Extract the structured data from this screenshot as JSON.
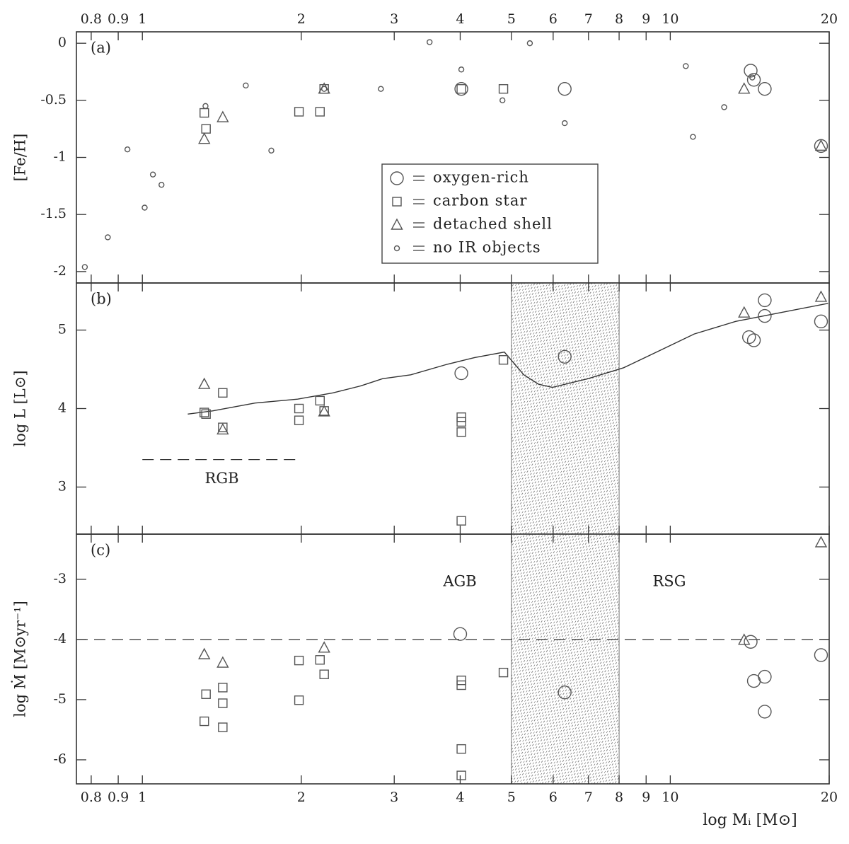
{
  "chart_data": [
    {
      "type": "scatter",
      "panel_label": "(a)",
      "ylabel": "[Fe/H]",
      "xscale": "log",
      "xlim": [
        0.75,
        20
      ],
      "xticks": [
        0.8,
        0.9,
        1,
        2,
        3,
        4,
        5,
        6,
        7,
        8,
        9,
        10,
        20
      ],
      "ylim": [
        -2.1,
        0.1
      ],
      "yticks": [
        0,
        -0.5,
        -1,
        -1.5,
        -2
      ],
      "legend": "center",
      "series": [
        {
          "name": "oxygen-rich",
          "marker": "circle",
          "color": "#555555",
          "x": [
            4.02,
            6.31,
            14.2,
            14.4,
            15.1,
            19.3
          ],
          "values": [
            -0.4,
            -0.4,
            -0.24,
            -0.32,
            -0.4,
            -0.9
          ]
        },
        {
          "name": "carbon star",
          "marker": "square",
          "color": "#555555",
          "x": [
            1.31,
            1.32,
            1.98,
            2.17,
            2.21,
            4.02,
            4.83
          ],
          "values": [
            -0.61,
            -0.75,
            -0.6,
            -0.6,
            -0.4,
            -0.4,
            -0.4
          ]
        },
        {
          "name": "detached shell",
          "marker": "triangle",
          "color": "#555555",
          "x": [
            1.31,
            1.42,
            2.21,
            13.8,
            19.3
          ],
          "values": [
            -0.84,
            -0.65,
            -0.4,
            -0.4,
            -0.9
          ]
        },
        {
          "name": "no IR objects",
          "marker": "dot",
          "color": "#000000",
          "x": [
            0.778,
            0.86,
            0.937,
            1.01,
            1.047,
            1.087,
            1.317,
            1.57,
            1.755,
            2.21,
            2.83,
            3.5,
            4.02,
            4.81,
            5.42,
            6.31,
            10.7,
            11.04,
            12.65,
            14.3
          ],
          "values": [
            -1.96,
            -1.7,
            -0.93,
            -1.44,
            -1.15,
            -1.24,
            -0.55,
            -0.37,
            -0.94,
            -0.4,
            -0.4,
            0.01,
            -0.23,
            -0.5,
            0.0,
            -0.7,
            -0.2,
            -0.82,
            -0.56,
            -0.3
          ]
        }
      ]
    },
    {
      "type": "scatter",
      "panel_label": "(b)",
      "ylabel": "log L [L⊙]",
      "xscale": "log",
      "xlim": [
        0.75,
        20
      ],
      "xticks": [
        0.8,
        0.9,
        1,
        2,
        3,
        4,
        5,
        6,
        7,
        8,
        9,
        10,
        20
      ],
      "ylim": [
        2.4,
        5.6
      ],
      "yticks": [
        3,
        4,
        5
      ],
      "shaded_region": [
        5,
        8
      ],
      "reference_lines": [
        {
          "value": 3.35,
          "x": [
            1,
            2
          ],
          "label": "RGB"
        }
      ],
      "lines": [
        {
          "color": "#333333",
          "x": [
            1.219,
            1.358,
            1.635,
            1.968,
            2.297,
            2.596,
            2.85,
            3.224,
            3.76,
            4.26,
            4.85,
            5.28,
            5.63,
            5.98,
            6.98,
            8.16,
            9.49,
            11.1,
            13.3,
            16.1,
            19.9
          ],
          "values": [
            3.93,
            3.97,
            4.07,
            4.12,
            4.2,
            4.29,
            4.38,
            4.43,
            4.56,
            4.65,
            4.72,
            4.43,
            4.31,
            4.27,
            4.38,
            4.52,
            4.73,
            4.95,
            5.11,
            5.22,
            5.34
          ]
        }
      ],
      "series": [
        {
          "marker": "circle",
          "color": "#555555",
          "x": [
            4.02,
            6.31,
            14.1,
            14.4,
            15.1,
            15.1,
            19.3
          ],
          "values": [
            4.45,
            4.66,
            4.91,
            4.87,
            5.38,
            5.18,
            5.11
          ]
        },
        {
          "marker": "square",
          "color": "#555555",
          "x": [
            1.31,
            1.32,
            1.42,
            1.42,
            1.98,
            1.98,
            2.17,
            2.21,
            4.02,
            4.02,
            4.02,
            4.02,
            4.83
          ],
          "values": [
            3.95,
            3.93,
            4.2,
            3.76,
            4.0,
            3.85,
            4.1,
            3.97,
            3.89,
            3.83,
            3.7,
            2.57,
            4.62
          ]
        },
        {
          "marker": "triangle",
          "color": "#555555",
          "x": [
            1.31,
            1.42,
            2.21,
            13.8,
            19.3
          ],
          "values": [
            4.31,
            3.73,
            3.96,
            5.22,
            5.42
          ]
        }
      ]
    },
    {
      "type": "scatter",
      "panel_label": "(c)",
      "ylabel": "log Ṁ [M⊙yr⁻¹]",
      "xlabel": "log Mᵢ [M⊙]",
      "xscale": "log",
      "xlim": [
        0.75,
        20
      ],
      "xticks": [
        0.8,
        0.9,
        1,
        2,
        3,
        4,
        5,
        6,
        7,
        8,
        9,
        10,
        20
      ],
      "ylim": [
        -6.4,
        -2.25
      ],
      "yticks": [
        -3,
        -4,
        -5,
        -6
      ],
      "shaded_region": [
        5,
        8
      ],
      "reference_lines": [
        {
          "value": -4
        }
      ],
      "annotations": [
        "AGB",
        "RSG"
      ],
      "series": [
        {
          "marker": "circle",
          "color": "#555555",
          "x": [
            4.0,
            6.31,
            14.2,
            14.4,
            15.1,
            15.1,
            19.3
          ],
          "values": [
            -3.91,
            -4.88,
            -4.04,
            -4.69,
            -4.62,
            -5.2,
            -4.26
          ]
        },
        {
          "marker": "square",
          "color": "#555555",
          "x": [
            1.32,
            1.31,
            1.42,
            1.42,
            1.42,
            1.98,
            1.98,
            2.17,
            2.21,
            4.02,
            4.02,
            4.02,
            4.02,
            4.83
          ],
          "values": [
            -4.91,
            -5.36,
            -4.8,
            -5.06,
            -5.46,
            -4.35,
            -5.01,
            -4.34,
            -4.58,
            -4.68,
            -4.76,
            -5.82,
            -6.26,
            -4.55
          ]
        },
        {
          "marker": "triangle",
          "color": "#555555",
          "x": [
            1.31,
            1.42,
            2.21,
            13.8,
            19.3
          ],
          "values": [
            -4.25,
            -4.39,
            -4.14,
            -4.01,
            -2.39
          ]
        }
      ]
    }
  ]
}
